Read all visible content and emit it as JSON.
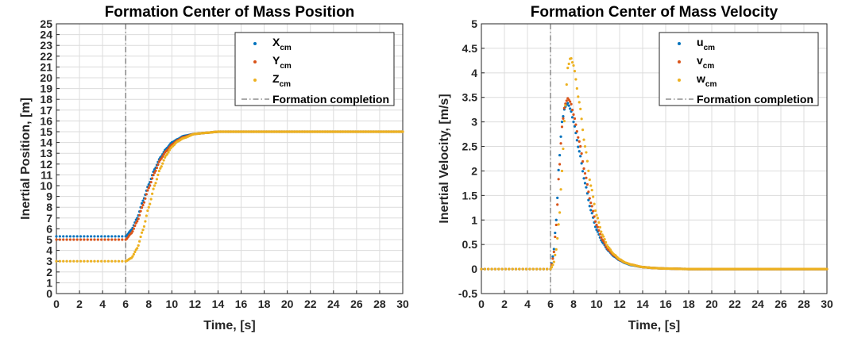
{
  "colors": {
    "series1": "#0072BD",
    "series2": "#D95319",
    "series3": "#EDB120",
    "completion_line": "#555555",
    "grid": "#dcdcdc"
  },
  "chart_data": [
    {
      "type": "scatter",
      "title": "Formation Center of Mass Position",
      "xlabel": "Time, [s]",
      "ylabel": "Inertial Position, [m]",
      "xlim": [
        0,
        30
      ],
      "ylim": [
        0,
        25
      ],
      "xticks": [
        0,
        2,
        4,
        6,
        8,
        10,
        12,
        14,
        16,
        18,
        20,
        22,
        24,
        26,
        28,
        30
      ],
      "yticks": [
        0,
        1,
        2,
        3,
        4,
        5,
        6,
        7,
        8,
        9,
        10,
        11,
        12,
        13,
        14,
        15,
        16,
        17,
        18,
        19,
        20,
        21,
        22,
        23,
        24,
        25
      ],
      "grid": true,
      "legend_position": "top-right",
      "vline": {
        "x": 6,
        "label": "Formation completion"
      },
      "series": [
        {
          "name": "X",
          "sub": "cm",
          "x": [
            0,
            1,
            2,
            3,
            4,
            5,
            6,
            6.5,
            7,
            7.5,
            8,
            8.5,
            9,
            9.5,
            10,
            10.5,
            11,
            12,
            13,
            14,
            16,
            18,
            20,
            25,
            30
          ],
          "y": [
            5.3,
            5.3,
            5.3,
            5.3,
            5.3,
            5.3,
            5.3,
            5.9,
            7.0,
            8.6,
            10.1,
            11.5,
            12.6,
            13.4,
            14.0,
            14.3,
            14.6,
            14.8,
            14.9,
            15.0,
            15.0,
            15.0,
            15.0,
            15.0,
            15.0
          ]
        },
        {
          "name": "Y",
          "sub": "cm",
          "x": [
            0,
            1,
            2,
            3,
            4,
            5,
            6,
            6.5,
            7,
            7.5,
            8,
            8.5,
            9,
            9.5,
            10,
            10.5,
            11,
            12,
            13,
            14,
            16,
            18,
            20,
            25,
            30
          ],
          "y": [
            5.0,
            5.0,
            5.0,
            5.0,
            5.0,
            5.0,
            5.0,
            5.6,
            6.7,
            8.2,
            9.8,
            11.2,
            12.4,
            13.2,
            13.8,
            14.2,
            14.5,
            14.8,
            14.9,
            15.0,
            15.0,
            15.0,
            15.0,
            15.0,
            15.0
          ]
        },
        {
          "name": "Z",
          "sub": "cm",
          "x": [
            0,
            1,
            2,
            3,
            4,
            5,
            6,
            6.5,
            7,
            7.5,
            8,
            8.5,
            9,
            9.5,
            10,
            10.5,
            11,
            12,
            13,
            14,
            16,
            18,
            20,
            25,
            30
          ],
          "y": [
            3.0,
            3.0,
            3.0,
            3.0,
            3.0,
            3.0,
            3.0,
            3.3,
            4.2,
            5.9,
            8.0,
            10.0,
            11.6,
            12.8,
            13.6,
            14.1,
            14.4,
            14.8,
            14.9,
            15.0,
            15.0,
            15.0,
            15.0,
            15.0,
            15.0
          ]
        }
      ]
    },
    {
      "type": "scatter",
      "title": "Formation Center of Mass Velocity",
      "xlabel": "Time, [s]",
      "ylabel": "Inertial Velocity, [m/s]",
      "xlim": [
        0,
        30
      ],
      "ylim": [
        -0.5,
        5
      ],
      "xticks": [
        0,
        2,
        4,
        6,
        8,
        10,
        12,
        14,
        16,
        18,
        20,
        22,
        24,
        26,
        28,
        30
      ],
      "yticks": [
        -0.5,
        0,
        0.5,
        1,
        1.5,
        2,
        2.5,
        3,
        3.5,
        4,
        4.5,
        5
      ],
      "grid": true,
      "legend_position": "top-right",
      "vline": {
        "x": 6,
        "label": "Formation completion"
      },
      "series": [
        {
          "name": "u",
          "sub": "cm",
          "x": [
            0,
            6,
            6.25,
            6.5,
            6.75,
            7,
            7.25,
            7.5,
            7.75,
            8,
            8.5,
            9,
            9.5,
            10,
            10.5,
            11,
            11.5,
            12,
            12.5,
            13,
            14,
            15,
            16,
            18,
            20,
            30
          ],
          "y": [
            0,
            0,
            0.3,
            1.0,
            2.2,
            3.0,
            3.3,
            3.38,
            3.25,
            3.0,
            2.4,
            1.75,
            1.2,
            0.8,
            0.55,
            0.38,
            0.26,
            0.18,
            0.12,
            0.08,
            0.04,
            0.02,
            0.01,
            0,
            0,
            0
          ]
        },
        {
          "name": "v",
          "sub": "cm",
          "x": [
            0,
            6,
            6.25,
            6.5,
            6.75,
            7,
            7.25,
            7.5,
            7.75,
            8,
            8.5,
            9,
            9.5,
            10,
            10.5,
            11,
            11.5,
            12,
            12.5,
            13,
            14,
            15,
            16,
            18,
            20,
            30
          ],
          "y": [
            0,
            0,
            0.25,
            0.9,
            2.0,
            2.9,
            3.35,
            3.48,
            3.4,
            3.15,
            2.6,
            1.95,
            1.35,
            0.9,
            0.6,
            0.4,
            0.28,
            0.19,
            0.13,
            0.09,
            0.04,
            0.02,
            0.01,
            0,
            0,
            0
          ]
        },
        {
          "name": "w",
          "sub": "cm",
          "x": [
            0,
            6,
            6.25,
            6.5,
            6.75,
            7,
            7.25,
            7.5,
            7.75,
            8,
            8.5,
            9,
            9.5,
            10,
            10.5,
            11,
            11.5,
            12,
            12.5,
            13,
            14,
            15,
            16,
            18,
            20,
            30
          ],
          "y": [
            0,
            0,
            0.1,
            0.4,
            1.0,
            2.0,
            3.2,
            4.1,
            4.32,
            4.15,
            3.4,
            2.5,
            1.7,
            1.1,
            0.7,
            0.45,
            0.3,
            0.2,
            0.13,
            0.09,
            0.04,
            0.02,
            0.01,
            0,
            0,
            0
          ]
        }
      ]
    }
  ]
}
